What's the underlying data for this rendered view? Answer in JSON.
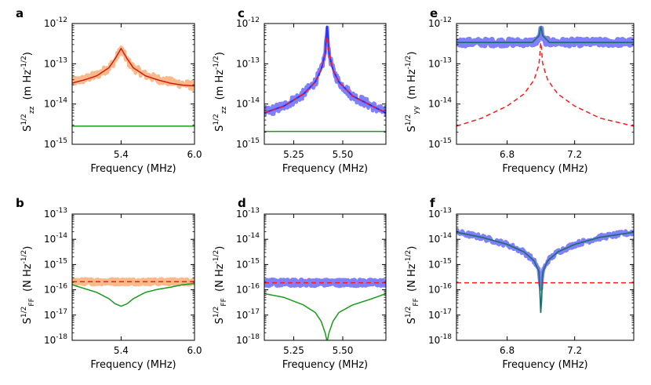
{
  "colors": {
    "raw_orange": "#fbb98a",
    "raw_blue": "#7f7fff",
    "fit_red": "#d01c10",
    "dashed_red": "#ff1a1a",
    "green": "#1a9a1a",
    "teal": "#1f6f6f",
    "blue_line": "#2233ff"
  },
  "chart_data": [
    {
      "panel": "a",
      "type": "line",
      "log_y": true,
      "grid": false,
      "xlabel": "Frequency (MHz)",
      "ylabel_main": "S",
      "ylabel_sup": "1/2",
      "ylabel_sub": "zz",
      "ylabel_units": "(m Hz-1/2)",
      "xlim": [
        5.0,
        6.0
      ],
      "ylim_exp": [
        -15,
        -12
      ],
      "xticks": [
        5.4,
        6.0
      ],
      "xtick_labels": [
        "5.4",
        "6.0"
      ],
      "ytick_exps": [
        -15,
        -14,
        -13,
        -12
      ],
      "ytick_labels": [
        "10-15",
        "10-14",
        "10-13",
        "10-12"
      ],
      "series": [
        {
          "role": "measured",
          "color": "#fbb98a",
          "noise": 0.1,
          "style": "solid",
          "width": 4.5,
          "x": [
            5.0,
            5.1,
            5.2,
            5.3,
            5.35,
            5.4,
            5.45,
            5.5,
            5.6,
            5.7,
            5.8,
            5.9,
            6.0
          ],
          "y_log": [
            -13.45,
            -13.38,
            -13.28,
            -13.1,
            -12.92,
            -12.62,
            -12.92,
            -13.1,
            -13.28,
            -13.38,
            -13.45,
            -13.5,
            -13.55
          ]
        },
        {
          "role": "fit",
          "color": "#d01c10",
          "style": "solid",
          "width": 1.5,
          "x": [
            5.0,
            5.1,
            5.2,
            5.3,
            5.35,
            5.4,
            5.45,
            5.5,
            5.6,
            5.7,
            5.8,
            5.9,
            6.0
          ],
          "y_log": [
            -13.48,
            -13.4,
            -13.3,
            -13.1,
            -12.88,
            -12.62,
            -12.88,
            -13.1,
            -13.3,
            -13.4,
            -13.48,
            -13.53,
            -13.55
          ]
        },
        {
          "role": "noise-floor",
          "color": "#1a9a1a",
          "style": "solid",
          "width": 1.5,
          "x": [
            5.0,
            6.0
          ],
          "y_log": [
            -14.55,
            -14.55
          ]
        }
      ]
    },
    {
      "panel": "c",
      "type": "line",
      "log_y": true,
      "grid": false,
      "xlabel": "Frequency (MHz)",
      "ylabel_main": "S",
      "ylabel_sup": "1/2",
      "ylabel_sub": "zz",
      "ylabel_units": "(m Hz-1/2)",
      "xlim": [
        5.1,
        5.72
      ],
      "ylim_exp": [
        -15,
        -12
      ],
      "xticks": [
        5.25,
        5.5
      ],
      "xtick_labels": [
        "5.25",
        "5.50"
      ],
      "ytick_exps": [
        -15,
        -14,
        -13,
        -12
      ],
      "ytick_labels": [
        "10-15",
        "10-14",
        "10-13",
        "10-12"
      ],
      "series": [
        {
          "role": "measured",
          "color": "#7f7fff",
          "noise": 0.12,
          "style": "solid",
          "width": 4.5,
          "x": [
            5.1,
            5.2,
            5.3,
            5.36,
            5.39,
            5.41,
            5.42,
            5.43,
            5.45,
            5.48,
            5.55,
            5.65,
            5.72
          ],
          "y_log": [
            -14.22,
            -14.05,
            -13.75,
            -13.45,
            -13.15,
            -12.75,
            -12.05,
            -12.75,
            -13.15,
            -13.45,
            -13.8,
            -14.05,
            -14.22
          ]
        },
        {
          "role": "fit-blue",
          "color": "#2233ff",
          "style": "solid",
          "width": 2,
          "x": [
            5.1,
            5.2,
            5.3,
            5.36,
            5.39,
            5.41,
            5.42,
            5.43,
            5.45,
            5.48,
            5.55,
            5.65,
            5.72
          ],
          "y_log": [
            -14.22,
            -14.05,
            -13.75,
            -13.45,
            -13.15,
            -12.75,
            -12.02,
            -12.75,
            -13.15,
            -13.45,
            -13.8,
            -14.05,
            -14.22
          ]
        },
        {
          "role": "model",
          "color": "#ff1a1a",
          "style": "dashed",
          "width": 1.5,
          "x": [
            5.1,
            5.2,
            5.3,
            5.36,
            5.39,
            5.41,
            5.42,
            5.43,
            5.45,
            5.48,
            5.55,
            5.65,
            5.72
          ],
          "y_log": [
            -14.22,
            -14.05,
            -13.75,
            -13.45,
            -13.15,
            -12.75,
            -12.3,
            -12.75,
            -13.15,
            -13.45,
            -13.8,
            -14.05,
            -14.22
          ]
        },
        {
          "role": "noise-floor",
          "color": "#1a9a1a",
          "style": "solid",
          "width": 1.5,
          "x": [
            5.1,
            5.72
          ],
          "y_log": [
            -14.68,
            -14.68
          ]
        }
      ]
    },
    {
      "panel": "e",
      "type": "line",
      "log_y": true,
      "grid": false,
      "xlabel": "Frequency (MHz)",
      "ylabel_main": "S",
      "ylabel_sup": "1/2",
      "ylabel_sub": "yy",
      "ylabel_units": "(m Hz-1/2)",
      "xlim": [
        6.5,
        7.55
      ],
      "ylim_exp": [
        -15,
        -12
      ],
      "xticks": [
        6.8,
        7.2
      ],
      "xtick_labels": [
        "6.8",
        "7.2"
      ],
      "ytick_exps": [
        -15,
        -14,
        -13,
        -12
      ],
      "ytick_labels": [
        "10-15",
        "10-14",
        "10-13",
        "10-12"
      ],
      "series": [
        {
          "role": "measured",
          "color": "#7f7fff",
          "noise": 0.08,
          "style": "solid",
          "width": 7,
          "x": [
            6.5,
            6.8,
            6.95,
            6.99,
            7.0,
            7.01,
            7.05,
            7.2,
            7.55
          ],
          "y_log": [
            -12.47,
            -12.47,
            -12.47,
            -12.4,
            -12.15,
            -12.4,
            -12.47,
            -12.47,
            -12.47
          ]
        },
        {
          "role": "fit",
          "color": "#1f6f6f",
          "style": "solid",
          "width": 1.8,
          "x": [
            6.5,
            6.95,
            6.99,
            7.0,
            7.01,
            7.05,
            7.55
          ],
          "y_log": [
            -12.47,
            -12.47,
            -12.3,
            -12.05,
            -12.3,
            -12.47,
            -12.47
          ]
        },
        {
          "role": "model",
          "color": "#ff1a1a",
          "style": "dashed",
          "width": 1.5,
          "x": [
            6.5,
            6.65,
            6.8,
            6.9,
            6.96,
            6.99,
            7.0,
            7.01,
            7.04,
            7.1,
            7.2,
            7.35,
            7.55
          ],
          "y_log": [
            -14.55,
            -14.35,
            -14.05,
            -13.75,
            -13.4,
            -13.0,
            -12.4,
            -13.0,
            -13.4,
            -13.75,
            -14.05,
            -14.35,
            -14.55
          ]
        }
      ]
    },
    {
      "panel": "b",
      "type": "line",
      "log_y": true,
      "grid": false,
      "xlabel": "Frequency (MHz)",
      "ylabel_main": "S",
      "ylabel_sup": "1/2",
      "ylabel_sub": "FF",
      "ylabel_units": "(N Hz-1/2)",
      "xlim": [
        5.0,
        6.0
      ],
      "ylim_exp": [
        -18,
        -13
      ],
      "xticks": [
        5.4,
        6.0
      ],
      "xtick_labels": [
        "5.4",
        "6.0"
      ],
      "ytick_exps": [
        -18,
        -17,
        -16,
        -15,
        -14,
        -13
      ],
      "ytick_labels": [
        "10-18",
        "10-17",
        "10-16",
        "10-15",
        "10-14",
        "10-13"
      ],
      "series": [
        {
          "role": "measured",
          "color": "#fbb98a",
          "noise": 0.08,
          "style": "solid",
          "width": 7,
          "x": [
            5.0,
            6.0
          ],
          "y_log": [
            -15.68,
            -15.68
          ]
        },
        {
          "role": "model",
          "color": "#ff1a1a",
          "style": "dashed",
          "width": 1.5,
          "x": [
            5.0,
            6.0
          ],
          "y_log": [
            -15.68,
            -15.68
          ]
        },
        {
          "role": "added-force-noise",
          "color": "#1a9a1a",
          "style": "solid",
          "width": 1.5,
          "x": [
            5.0,
            5.1,
            5.2,
            5.3,
            5.35,
            5.4,
            5.45,
            5.5,
            5.6,
            5.7,
            5.8,
            5.9,
            6.0
          ],
          "y_log": [
            -15.8,
            -15.95,
            -16.1,
            -16.35,
            -16.55,
            -16.65,
            -16.55,
            -16.35,
            -16.1,
            -15.98,
            -15.9,
            -15.8,
            -15.75
          ]
        }
      ]
    },
    {
      "panel": "d",
      "type": "line",
      "log_y": true,
      "grid": false,
      "xlabel": "Frequency (MHz)",
      "ylabel_main": "S",
      "ylabel_sup": "1/2",
      "ylabel_sub": "FF",
      "ylabel_units": "(N Hz-1/2)",
      "xlim": [
        5.1,
        5.72
      ],
      "ylim_exp": [
        -18,
        -13
      ],
      "xticks": [
        5.25,
        5.5
      ],
      "xtick_labels": [
        "5.25",
        "5.50"
      ],
      "ytick_exps": [
        -18,
        -17,
        -16,
        -15,
        -14,
        -13
      ],
      "ytick_labels": [
        "10-18",
        "10-17",
        "10-16",
        "10-15",
        "10-14",
        "10-13"
      ],
      "series": [
        {
          "role": "measured",
          "color": "#7f7fff",
          "noise": 0.1,
          "style": "solid",
          "width": 7,
          "x": [
            5.1,
            5.72
          ],
          "y_log": [
            -15.72,
            -15.72
          ]
        },
        {
          "role": "model",
          "color": "#ff1a1a",
          "style": "dashed",
          "width": 1.5,
          "x": [
            5.1,
            5.72
          ],
          "y_log": [
            -15.72,
            -15.72
          ]
        },
        {
          "role": "added-force-noise",
          "color": "#1a9a1a",
          "style": "solid",
          "width": 1.5,
          "x": [
            5.1,
            5.2,
            5.3,
            5.36,
            5.39,
            5.41,
            5.42,
            5.43,
            5.45,
            5.48,
            5.55,
            5.65,
            5.72
          ],
          "y_log": [
            -16.15,
            -16.3,
            -16.6,
            -16.9,
            -17.25,
            -17.7,
            -18.05,
            -17.7,
            -17.25,
            -16.9,
            -16.6,
            -16.35,
            -16.15
          ]
        }
      ]
    },
    {
      "panel": "f",
      "type": "line",
      "log_y": true,
      "grid": false,
      "xlabel": "Frequency (MHz)",
      "ylabel_main": "S",
      "ylabel_sup": "1/2",
      "ylabel_sub": "FF",
      "ylabel_units": "(N Hz-1/2)",
      "xlim": [
        6.5,
        7.55
      ],
      "ylim_exp": [
        -18,
        -13
      ],
      "xticks": [
        6.8,
        7.2
      ],
      "xtick_labels": [
        "6.8",
        "7.2"
      ],
      "ytick_exps": [
        -18,
        -17,
        -16,
        -15,
        -14,
        -13
      ],
      "ytick_labels": [
        "10-18",
        "10-17",
        "10-16",
        "10-15",
        "10-14",
        "10-13"
      ],
      "series": [
        {
          "role": "measured",
          "color": "#7f7fff",
          "noise": 0.1,
          "style": "solid",
          "width": 5,
          "x": [
            6.5,
            6.65,
            6.8,
            6.9,
            6.96,
            6.99,
            7.0,
            7.01,
            7.04,
            7.1,
            7.2,
            7.35,
            7.55
          ],
          "y_log": [
            -13.72,
            -13.92,
            -14.2,
            -14.5,
            -14.85,
            -15.3,
            -16.05,
            -15.3,
            -14.85,
            -14.5,
            -14.2,
            -13.92,
            -13.72
          ]
        },
        {
          "role": "fit",
          "color": "#1f6f6f",
          "style": "solid",
          "width": 1.8,
          "x": [
            6.5,
            6.65,
            6.8,
            6.9,
            6.96,
            6.99,
            7.0,
            7.01,
            7.04,
            7.1,
            7.2,
            7.35,
            7.55
          ],
          "y_log": [
            -13.72,
            -13.92,
            -14.2,
            -14.5,
            -14.85,
            -15.3,
            -17.12,
            -15.3,
            -14.85,
            -14.5,
            -14.2,
            -13.92,
            -13.72
          ]
        },
        {
          "role": "model",
          "color": "#ff1a1a",
          "style": "dashed",
          "width": 1.5,
          "x": [
            6.5,
            7.55
          ],
          "y_log": [
            -15.72,
            -15.72
          ]
        }
      ]
    }
  ]
}
